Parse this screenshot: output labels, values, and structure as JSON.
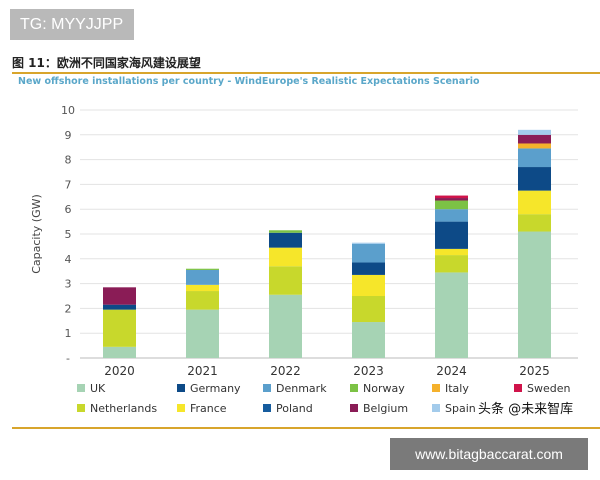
{
  "badge": {
    "text": "TG: MYYJJPP"
  },
  "figure_title": "图 11：欧洲不同国家海风建设展望",
  "watermark": "头条 @未来智库",
  "url_badge": {
    "text": "www.bitagbaccarat.com"
  },
  "colors": {
    "UK": "#a6d3b4",
    "Netherlands": "#c8d82c",
    "Germany": "#0d4a87",
    "France": "#f6e62a",
    "Denmark": "#5b9fcc",
    "Poland": "#165c9e",
    "Norway": "#7cc245",
    "Belgium": "#8a1c56",
    "Italy": "#f5b12c",
    "Spain": "#a3cbeb",
    "Sweden": "#d0134a",
    "rule": "#d8a52c",
    "subtitle": "#5aa7c9"
  },
  "chart_data": {
    "type": "bar",
    "stacked": true,
    "title": "New offshore installations per country - WindEurope's Realistic Expectations Scenario",
    "xlabel": "",
    "ylabel": "Capacity (GW)",
    "ylim": [
      0,
      10
    ],
    "yticks": [
      "-",
      "1",
      "2",
      "3",
      "4",
      "5",
      "6",
      "7",
      "8",
      "9",
      "10"
    ],
    "grid": true,
    "categories": [
      "2020",
      "2021",
      "2022",
      "2023",
      "2024",
      "2025"
    ],
    "series": [
      {
        "name": "UK",
        "values": [
          0.45,
          1.95,
          2.55,
          1.45,
          3.45,
          5.1
        ]
      },
      {
        "name": "Netherlands",
        "values": [
          1.5,
          0.75,
          1.15,
          1.05,
          0.7,
          0.7
        ]
      },
      {
        "name": "France",
        "values": [
          0,
          0.25,
          0.75,
          0.85,
          0.25,
          0.95
        ]
      },
      {
        "name": "Poland",
        "values": [
          0,
          0,
          0,
          0,
          0,
          0
        ]
      },
      {
        "name": "Germany",
        "values": [
          0.2,
          0,
          0.6,
          0.5,
          1.1,
          0.95
        ]
      },
      {
        "name": "Denmark",
        "values": [
          0,
          0.6,
          0,
          0.75,
          0.5,
          0.75
        ]
      },
      {
        "name": "Italy",
        "values": [
          0,
          0,
          0,
          0,
          0,
          0.2
        ]
      },
      {
        "name": "Norway",
        "values": [
          0,
          0.05,
          0.1,
          0,
          0.35,
          0
        ]
      },
      {
        "name": "Belgium",
        "values": [
          0.7,
          0,
          0,
          0,
          0.1,
          0.35
        ]
      },
      {
        "name": "Sweden",
        "values": [
          0,
          0,
          0,
          0,
          0.1,
          0
        ]
      },
      {
        "name": "Spain",
        "values": [
          0,
          0,
          0,
          0.05,
          0,
          0.2
        ]
      }
    ],
    "legend": [
      [
        "UK",
        "Germany",
        "Denmark",
        "Norway",
        "Italy",
        "Sweden"
      ],
      [
        "Netherlands",
        "France",
        "Poland",
        "Belgium",
        "Spain"
      ]
    ],
    "legend_position": "bottom"
  }
}
